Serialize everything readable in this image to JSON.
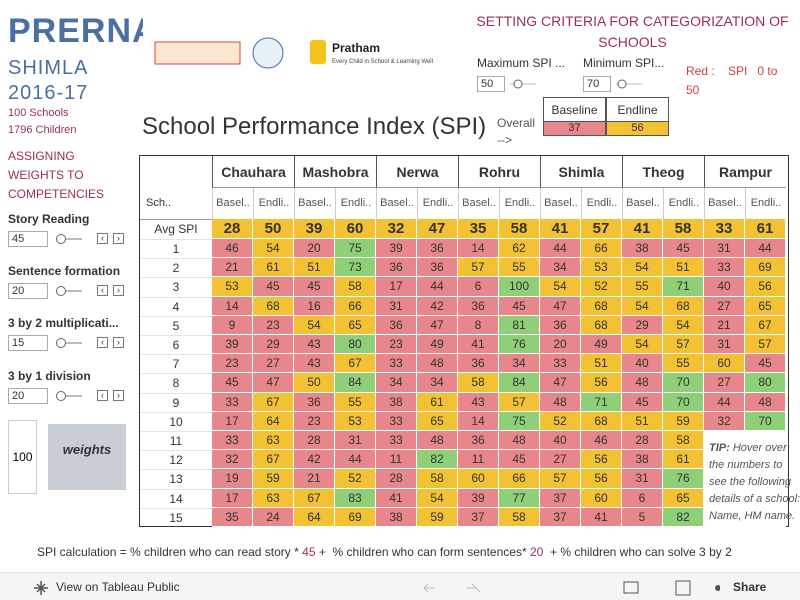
{
  "sidebar": {
    "title": "PRERNA",
    "subtitle": "SHIMLA",
    "year": "2016-17",
    "schools": "100 Schools",
    "children": "1796 Children",
    "weights_heading": "ASSIGNING WEIGHTS TO COMPETENCIES",
    "weights": [
      {
        "label": "Story Reading",
        "value": 45
      },
      {
        "label": "Sentence formation",
        "value": 20
      },
      {
        "label": "3 by 2 multiplicati...",
        "value": 15
      },
      {
        "label": "3 by 1 division",
        "value": 20
      }
    ],
    "total": 100,
    "total_label": "weights"
  },
  "logos": {
    "name": "Pratham",
    "tagline": "Every Child in School & Learning Well"
  },
  "header": {
    "criteria_title": "SETTING CRITERIA FOR CATEGORIZATION OF SCHOOLS",
    "max_label": "Maximum SPI ...",
    "max_value": 50,
    "min_label": "Minimum SPI...",
    "min_value": 70,
    "red_rule": "Red :    SPI   0 to  50",
    "title": "School Performance Index (SPI)",
    "overall_label": "Overall -->",
    "overall_headers": [
      "Baseline",
      "Endline"
    ],
    "overall_values": [
      37,
      56
    ]
  },
  "table": {
    "corner": "Sch..",
    "columns": [
      "Chauhara",
      "Mashobra",
      "Nerwa",
      "Rohru",
      "Shimla",
      "Theog",
      "Rampur"
    ],
    "subheaders": [
      "Basel..",
      "Endli.."
    ],
    "avg_label": "Avg SPI",
    "avg": [
      [
        28,
        50
      ],
      [
        39,
        60
      ],
      [
        32,
        47
      ],
      [
        35,
        58
      ],
      [
        41,
        57
      ],
      [
        41,
        58
      ],
      [
        33,
        61
      ]
    ],
    "rows": [
      {
        "label": "1",
        "values": [
          [
            46,
            54
          ],
          [
            20,
            75
          ],
          [
            39,
            36
          ],
          [
            14,
            62
          ],
          [
            44,
            66
          ],
          [
            38,
            45
          ],
          [
            31,
            44
          ]
        ]
      },
      {
        "label": "2",
        "values": [
          [
            21,
            61
          ],
          [
            51,
            73
          ],
          [
            36,
            36
          ],
          [
            57,
            55
          ],
          [
            34,
            53
          ],
          [
            54,
            51
          ],
          [
            33,
            69
          ]
        ]
      },
      {
        "label": "3",
        "values": [
          [
            53,
            45
          ],
          [
            45,
            58
          ],
          [
            17,
            44
          ],
          [
            6,
            100
          ],
          [
            54,
            52
          ],
          [
            55,
            71
          ],
          [
            40,
            56
          ]
        ]
      },
      {
        "label": "4",
        "values": [
          [
            14,
            68
          ],
          [
            16,
            66
          ],
          [
            31,
            42
          ],
          [
            36,
            45
          ],
          [
            47,
            68
          ],
          [
            54,
            68
          ],
          [
            27,
            65
          ]
        ]
      },
      {
        "label": "5",
        "values": [
          [
            9,
            23
          ],
          [
            54,
            65
          ],
          [
            36,
            47
          ],
          [
            8,
            81
          ],
          [
            36,
            68
          ],
          [
            29,
            54
          ],
          [
            21,
            67
          ]
        ]
      },
      {
        "label": "6",
        "values": [
          [
            39,
            29
          ],
          [
            43,
            80
          ],
          [
            23,
            49
          ],
          [
            41,
            76
          ],
          [
            20,
            49
          ],
          [
            54,
            57
          ],
          [
            31,
            57
          ]
        ]
      },
      {
        "label": "7",
        "values": [
          [
            23,
            27
          ],
          [
            43,
            67
          ],
          [
            33,
            48
          ],
          [
            36,
            34
          ],
          [
            33,
            51
          ],
          [
            40,
            55
          ],
          [
            60,
            45
          ]
        ]
      },
      {
        "label": "8",
        "values": [
          [
            45,
            47
          ],
          [
            50,
            84
          ],
          [
            34,
            34
          ],
          [
            58,
            84
          ],
          [
            47,
            56
          ],
          [
            48,
            70
          ],
          [
            27,
            80
          ]
        ]
      },
      {
        "label": "9",
        "values": [
          [
            33,
            67
          ],
          [
            36,
            55
          ],
          [
            38,
            61
          ],
          [
            43,
            57
          ],
          [
            48,
            71
          ],
          [
            45,
            70
          ],
          [
            44,
            48
          ]
        ]
      },
      {
        "label": "10",
        "values": [
          [
            17,
            64
          ],
          [
            23,
            53
          ],
          [
            33,
            65
          ],
          [
            14,
            75
          ],
          [
            52,
            68
          ],
          [
            51,
            59
          ],
          [
            32,
            70
          ]
        ]
      },
      {
        "label": "11",
        "values": [
          [
            33,
            63
          ],
          [
            28,
            31
          ],
          [
            33,
            48
          ],
          [
            36,
            48
          ],
          [
            40,
            46
          ],
          [
            28,
            58
          ],
          [
            null,
            null
          ]
        ]
      },
      {
        "label": "12",
        "values": [
          [
            32,
            67
          ],
          [
            42,
            44
          ],
          [
            11,
            82
          ],
          [
            11,
            45
          ],
          [
            27,
            56
          ],
          [
            38,
            61
          ],
          [
            null,
            null
          ]
        ]
      },
      {
        "label": "13",
        "values": [
          [
            19,
            59
          ],
          [
            21,
            52
          ],
          [
            28,
            58
          ],
          [
            60,
            66
          ],
          [
            57,
            56
          ],
          [
            31,
            76
          ],
          [
            null,
            null
          ]
        ]
      },
      {
        "label": "14",
        "values": [
          [
            17,
            63
          ],
          [
            67,
            83
          ],
          [
            41,
            54
          ],
          [
            39,
            77
          ],
          [
            37,
            60
          ],
          [
            6,
            65
          ],
          [
            null,
            null
          ]
        ]
      },
      {
        "label": "15",
        "values": [
          [
            35,
            24
          ],
          [
            64,
            69
          ],
          [
            38,
            59
          ],
          [
            37,
            58
          ],
          [
            37,
            41
          ],
          [
            5,
            82
          ],
          [
            null,
            null
          ]
        ]
      }
    ]
  },
  "tip": {
    "prefix": "TIP:",
    "text": "Hover over the numbers to see the following details of a school: Name, HM name."
  },
  "formula": {
    "parts": [
      "SPI calculation = % children who can read story * ",
      " +  % children who can form sentences* ",
      "  + % children who can solve 3 by 2"
    ],
    "weights": [
      45,
      20
    ]
  },
  "toolbar": {
    "view": "View on Tableau Public",
    "share": "Share"
  }
}
